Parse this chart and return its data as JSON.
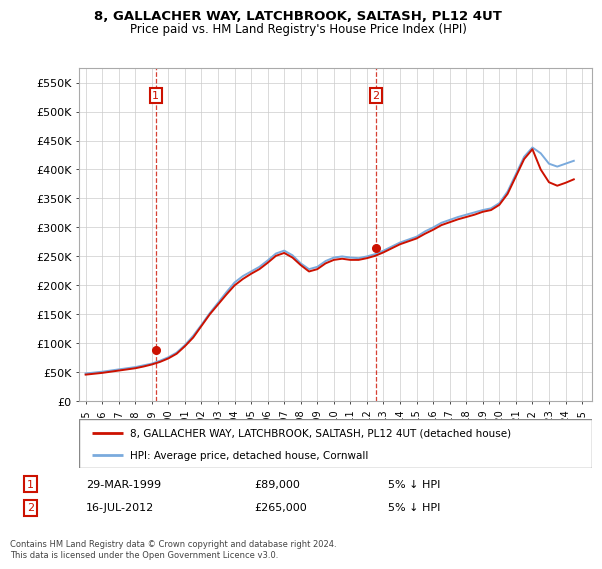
{
  "title": "8, GALLACHER WAY, LATCHBROOK, SALTASH, PL12 4UT",
  "subtitle": "Price paid vs. HM Land Registry's House Price Index (HPI)",
  "ylim": [
    0,
    575000
  ],
  "yticks": [
    0,
    50000,
    100000,
    150000,
    200000,
    250000,
    300000,
    350000,
    400000,
    450000,
    500000,
    550000
  ],
  "ytick_labels": [
    "£0",
    "£50K",
    "£100K",
    "£150K",
    "£200K",
    "£250K",
    "£300K",
    "£350K",
    "£400K",
    "£450K",
    "£500K",
    "£550K"
  ],
  "sale1_year": 1999.24,
  "sale1_price": 89000,
  "sale1_label": "1",
  "sale1_date": "29-MAR-1999",
  "sale1_price_str": "£89,000",
  "sale1_hpi": "5% ↓ HPI",
  "sale2_year": 2012.54,
  "sale2_price": 265000,
  "sale2_label": "2",
  "sale2_date": "16-JUL-2012",
  "sale2_price_str": "£265,000",
  "sale2_hpi": "5% ↓ HPI",
  "hpi_line_color": "#7aaadd",
  "price_line_color": "#cc1100",
  "marker_box_color": "#cc1100",
  "vline_color": "#cc1100",
  "grid_color": "#cccccc",
  "legend_label1": "8, GALLACHER WAY, LATCHBROOK, SALTASH, PL12 4UT (detached house)",
  "legend_label2": "HPI: Average price, detached house, Cornwall",
  "footnote": "Contains HM Land Registry data © Crown copyright and database right 2024.\nThis data is licensed under the Open Government Licence v3.0.",
  "hpi_values": [
    48000,
    49500,
    51000,
    53000,
    55000,
    57000,
    59000,
    62000,
    65000,
    70000,
    76000,
    84000,
    97000,
    113000,
    132000,
    152000,
    170000,
    188000,
    205000,
    216000,
    224000,
    232000,
    243000,
    255000,
    260000,
    252000,
    238000,
    228000,
    232000,
    242000,
    248000,
    250000,
    248000,
    247000,
    250000,
    254000,
    260000,
    267000,
    274000,
    279000,
    284000,
    293000,
    300000,
    308000,
    313000,
    318000,
    322000,
    326000,
    330000,
    333000,
    342000,
    362000,
    392000,
    422000,
    438000,
    428000,
    410000,
    405000,
    410000,
    415000
  ],
  "price_values": [
    46000,
    47500,
    49000,
    51000,
    53000,
    55000,
    57000,
    60000,
    63500,
    68000,
    74000,
    82000,
    95000,
    110000,
    130000,
    150000,
    167000,
    184000,
    200000,
    211000,
    220000,
    228000,
    239000,
    251000,
    256000,
    248000,
    235000,
    224000,
    228000,
    238000,
    244000,
    246000,
    244000,
    244000,
    247000,
    251000,
    257000,
    264000,
    271000,
    276000,
    281000,
    289000,
    296000,
    304000,
    309000,
    314000,
    318000,
    322000,
    327000,
    330000,
    339000,
    358000,
    388000,
    418000,
    435000,
    400000,
    378000,
    372000,
    377000,
    383000
  ],
  "years": [
    1995.0,
    1995.5,
    1996.0,
    1996.5,
    1997.0,
    1997.5,
    1998.0,
    1998.5,
    1999.0,
    1999.5,
    2000.0,
    2000.5,
    2001.0,
    2001.5,
    2002.0,
    2002.5,
    2003.0,
    2003.5,
    2004.0,
    2004.5,
    2005.0,
    2005.5,
    2006.0,
    2006.5,
    2007.0,
    2007.5,
    2008.0,
    2008.5,
    2009.0,
    2009.5,
    2010.0,
    2010.5,
    2011.0,
    2011.5,
    2012.0,
    2012.5,
    2013.0,
    2013.5,
    2014.0,
    2014.5,
    2015.0,
    2015.5,
    2016.0,
    2016.5,
    2017.0,
    2017.5,
    2018.0,
    2018.5,
    2019.0,
    2019.5,
    2020.0,
    2020.5,
    2021.0,
    2021.5,
    2022.0,
    2022.5,
    2023.0,
    2023.5,
    2024.0,
    2024.5
  ]
}
